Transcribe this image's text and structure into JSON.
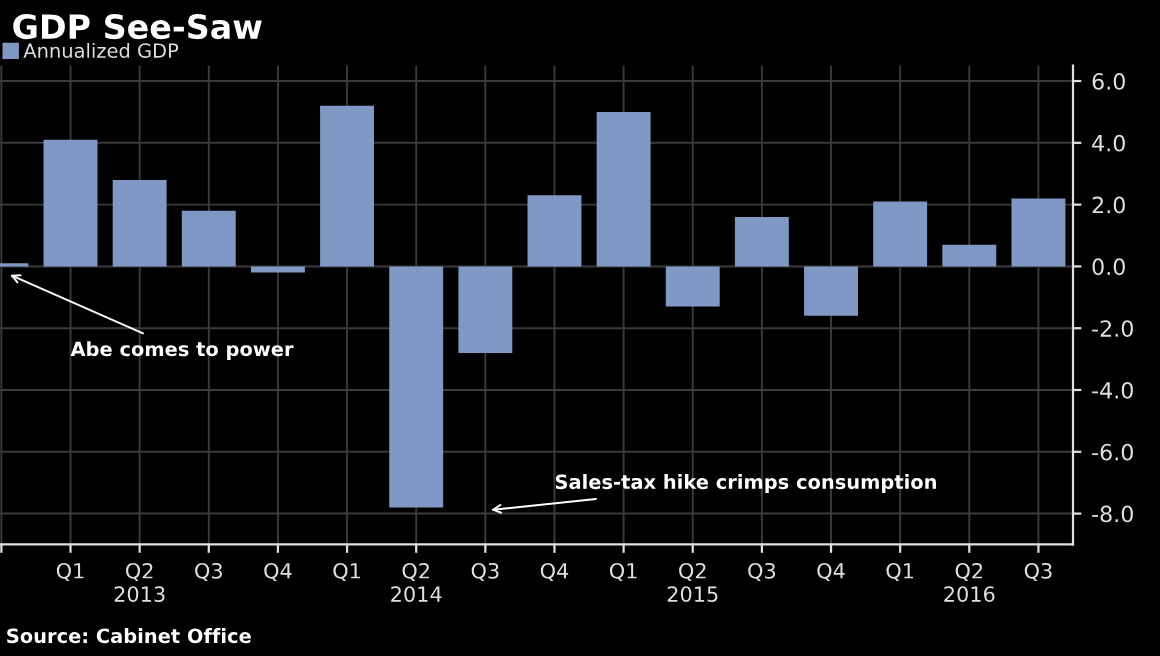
{
  "chart_data": {
    "type": "bar",
    "title": "GDP See-Saw",
    "categories": [
      null,
      "Q1",
      "Q2\n2013",
      "Q3",
      "Q4",
      "Q1",
      "Q2\n2014",
      "Q3",
      "Q4",
      "Q1",
      "Q2\n2015",
      "Q3",
      "Q4",
      "Q1",
      "Q2\n2016",
      "Q3"
    ],
    "series": [
      {
        "name": "Annualized GDP",
        "color": "#7f98c4",
        "values": [
          0.1,
          4.1,
          2.8,
          1.8,
          -0.2,
          5.2,
          -7.8,
          -2.8,
          2.3,
          5.0,
          -1.3,
          1.6,
          -1.6,
          2.1,
          0.7,
          2.2
        ]
      }
    ],
    "ylim": [
      -9.0,
      6.5
    ],
    "yticks": [
      {
        "value": -8,
        "label": "-8.0"
      },
      {
        "value": -6,
        "label": "-6.0"
      },
      {
        "value": -4,
        "label": "-4.0"
      },
      {
        "value": -2,
        "label": "-2.0"
      },
      {
        "value": 0,
        "label": "0.0"
      },
      {
        "value": 2,
        "label": "2.0"
      },
      {
        "value": 4,
        "label": "4.0"
      },
      {
        "value": 6,
        "label": "6.0"
      }
    ],
    "grid": true,
    "legend": "top left",
    "annotations": [
      "Abe comes to power",
      "Sales-tax hike crimps consumption",
      "Source: Cabinet Office"
    ]
  }
}
